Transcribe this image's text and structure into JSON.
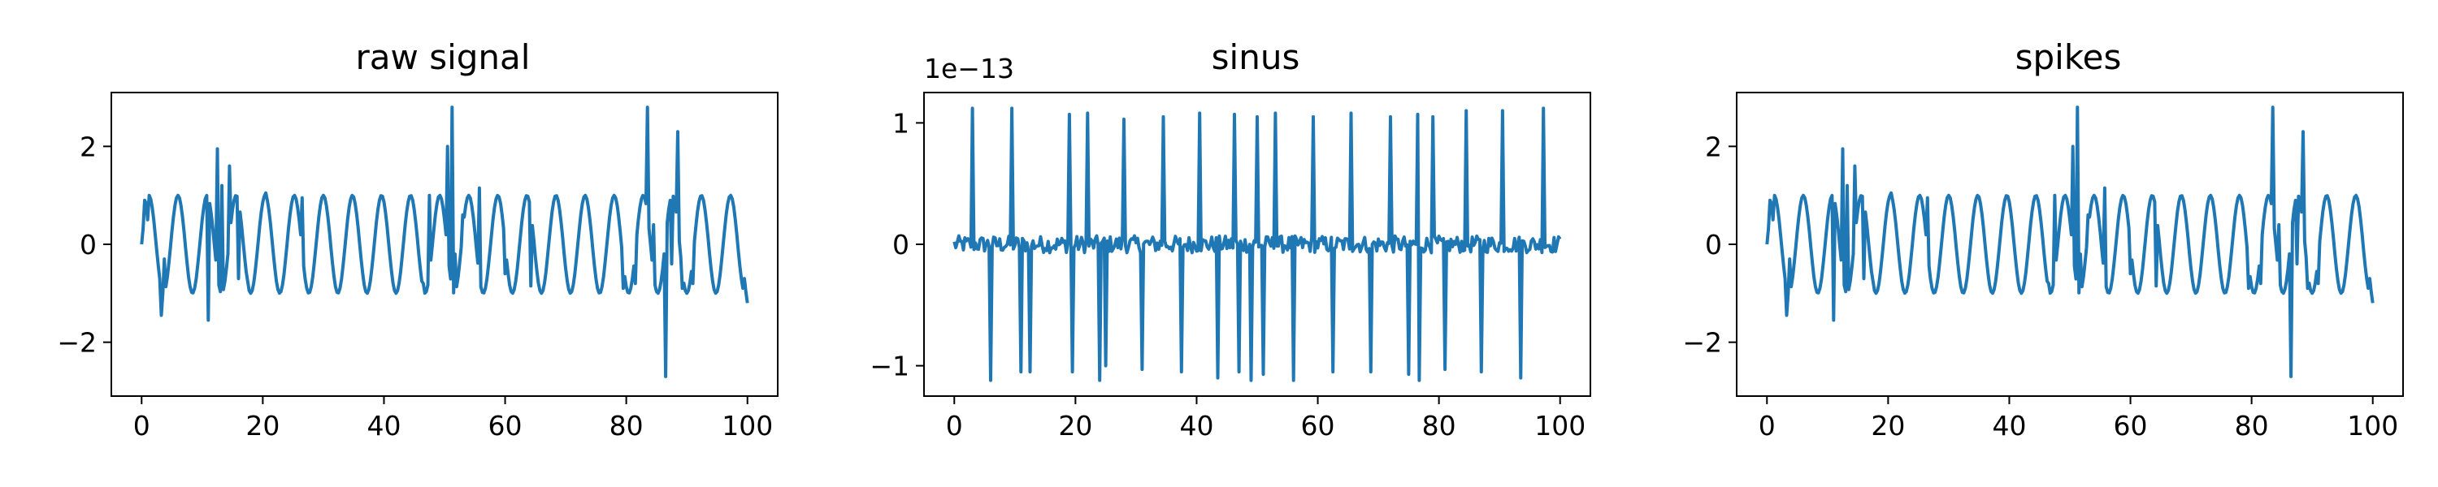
{
  "colors": {
    "line": "#1f77b4",
    "axes": "#000000",
    "background": "#ffffff"
  },
  "chart_data": [
    {
      "type": "line",
      "title": "raw signal",
      "xlabel": "",
      "ylabel": "",
      "xlim": [
        -5,
        105
      ],
      "ylim": [
        -3.1,
        3.1
      ],
      "xticks": [
        0,
        20,
        40,
        60,
        80,
        100
      ],
      "xtick_labels": [
        "0",
        "20",
        "40",
        "60",
        "80",
        "100"
      ],
      "yticks": [
        -2,
        0,
        2
      ],
      "ytick_labels": [
        "−2",
        "0",
        "2"
      ],
      "offset_label": "",
      "grid": false,
      "series": [
        {
          "period": 4.8,
          "amplitude": 1.0,
          "x_range": [
            0,
            100
          ],
          "spikes": [
            {
              "x": 0.4,
              "y": 0.9
            },
            {
              "x": 1.0,
              "y": 0.5
            },
            {
              "x": 3.2,
              "y": -1.45
            },
            {
              "x": 3.8,
              "y": -0.3
            },
            {
              "x": 11.0,
              "y": -1.55
            },
            {
              "x": 12.6,
              "y": 1.95
            },
            {
              "x": 13.2,
              "y": 1.2
            },
            {
              "x": 14.4,
              "y": 1.6
            },
            {
              "x": 16.0,
              "y": -0.7
            },
            {
              "x": 17.5,
              "y": -0.75
            },
            {
              "x": 20.6,
              "y": 1.05
            },
            {
              "x": 26.6,
              "y": 0.95
            },
            {
              "x": 46.4,
              "y": -0.8
            },
            {
              "x": 47.6,
              "y": 1.0
            },
            {
              "x": 50.6,
              "y": 2.0
            },
            {
              "x": 51.2,
              "y": 2.8
            },
            {
              "x": 51.8,
              "y": -0.2
            },
            {
              "x": 53.0,
              "y": 0.6
            },
            {
              "x": 55.8,
              "y": 1.15
            },
            {
              "x": 60.0,
              "y": -0.6
            },
            {
              "x": 64.2,
              "y": -0.85
            },
            {
              "x": 79.5,
              "y": -0.9
            },
            {
              "x": 81.6,
              "y": -0.8
            },
            {
              "x": 83.6,
              "y": 2.8
            },
            {
              "x": 84.4,
              "y": 0.4
            },
            {
              "x": 86.6,
              "y": -2.7
            },
            {
              "x": 87.4,
              "y": -0.4
            },
            {
              "x": 88.6,
              "y": 2.3
            },
            {
              "x": 89.2,
              "y": -0.9
            },
            {
              "x": 91.0,
              "y": -0.8
            },
            {
              "x": 99.6,
              "y": -0.7
            },
            {
              "x": 100.0,
              "y": -1.2
            }
          ]
        }
      ]
    },
    {
      "type": "line",
      "title": "sinus",
      "xlabel": "",
      "ylabel": "",
      "xlim": [
        -5,
        105
      ],
      "ylim": [
        -1.25,
        1.25
      ],
      "xticks": [
        0,
        20,
        40,
        60,
        80,
        100
      ],
      "xtick_labels": [
        "0",
        "20",
        "40",
        "60",
        "80",
        "100"
      ],
      "yticks": [
        -1,
        0,
        1
      ],
      "ytick_labels": [
        "−1",
        "0",
        "1"
      ],
      "offset_label": "1e−13",
      "grid": false,
      "series": [
        {
          "baseline_noise": 0.07,
          "x_range": [
            0,
            100
          ],
          "spikes": [
            {
              "x": 3.0,
              "y": 1.12
            },
            {
              "x": 6.0,
              "y": -1.12
            },
            {
              "x": 9.4,
              "y": 1.12
            },
            {
              "x": 11.0,
              "y": -1.05
            },
            {
              "x": 12.4,
              "y": -1.05
            },
            {
              "x": 19.0,
              "y": 1.07
            },
            {
              "x": 19.4,
              "y": -1.05
            },
            {
              "x": 22.0,
              "y": 1.08
            },
            {
              "x": 24.0,
              "y": -1.12
            },
            {
              "x": 25.0,
              "y": -1.0
            },
            {
              "x": 28.0,
              "y": 1.03
            },
            {
              "x": 31.0,
              "y": -1.03
            },
            {
              "x": 34.4,
              "y": 1.05
            },
            {
              "x": 37.4,
              "y": -1.05
            },
            {
              "x": 40.6,
              "y": 1.08
            },
            {
              "x": 43.6,
              "y": -1.1
            },
            {
              "x": 46.2,
              "y": 1.07
            },
            {
              "x": 47.0,
              "y": -1.05
            },
            {
              "x": 49.0,
              "y": -1.12
            },
            {
              "x": 50.0,
              "y": 1.05
            },
            {
              "x": 51.0,
              "y": -1.07
            },
            {
              "x": 53.0,
              "y": 1.08
            },
            {
              "x": 56.0,
              "y": -1.12
            },
            {
              "x": 59.2,
              "y": 1.05
            },
            {
              "x": 62.4,
              "y": -1.05
            },
            {
              "x": 65.6,
              "y": 1.08
            },
            {
              "x": 68.8,
              "y": -1.05
            },
            {
              "x": 72.0,
              "y": 1.05
            },
            {
              "x": 75.0,
              "y": -1.07
            },
            {
              "x": 76.4,
              "y": 1.07
            },
            {
              "x": 76.8,
              "y": -1.12
            },
            {
              "x": 79.0,
              "y": 1.05
            },
            {
              "x": 81.0,
              "y": -1.03
            },
            {
              "x": 84.6,
              "y": 1.1
            },
            {
              "x": 87.0,
              "y": -1.05
            },
            {
              "x": 90.6,
              "y": 1.1
            },
            {
              "x": 93.6,
              "y": -1.1
            },
            {
              "x": 97.2,
              "y": 1.12
            }
          ]
        }
      ]
    },
    {
      "type": "line",
      "title": "spikes",
      "xlabel": "",
      "ylabel": "",
      "xlim": [
        -5,
        105
      ],
      "ylim": [
        -3.1,
        3.1
      ],
      "xticks": [
        0,
        20,
        40,
        60,
        80,
        100
      ],
      "xtick_labels": [
        "0",
        "20",
        "40",
        "60",
        "80",
        "100"
      ],
      "yticks": [
        -2,
        0,
        2
      ],
      "ytick_labels": [
        "−2",
        "0",
        "2"
      ],
      "offset_label": "",
      "grid": false,
      "series": [
        {
          "period": 4.8,
          "amplitude": 1.0,
          "x_range": [
            0,
            100
          ],
          "spikes": [
            {
              "x": 0.4,
              "y": 0.9
            },
            {
              "x": 1.0,
              "y": 0.5
            },
            {
              "x": 3.2,
              "y": -1.45
            },
            {
              "x": 3.8,
              "y": -0.3
            },
            {
              "x": 11.0,
              "y": -1.55
            },
            {
              "x": 12.6,
              "y": 1.95
            },
            {
              "x": 13.2,
              "y": 1.2
            },
            {
              "x": 14.4,
              "y": 1.6
            },
            {
              "x": 16.0,
              "y": -0.7
            },
            {
              "x": 17.5,
              "y": -0.75
            },
            {
              "x": 20.6,
              "y": 1.05
            },
            {
              "x": 26.6,
              "y": 0.95
            },
            {
              "x": 46.4,
              "y": -0.8
            },
            {
              "x": 47.6,
              "y": 1.0
            },
            {
              "x": 50.6,
              "y": 2.0
            },
            {
              "x": 51.2,
              "y": 2.8
            },
            {
              "x": 51.8,
              "y": -0.2
            },
            {
              "x": 53.0,
              "y": 0.6
            },
            {
              "x": 55.8,
              "y": 1.15
            },
            {
              "x": 60.0,
              "y": -0.6
            },
            {
              "x": 64.2,
              "y": -0.85
            },
            {
              "x": 79.5,
              "y": -0.9
            },
            {
              "x": 81.6,
              "y": -0.8
            },
            {
              "x": 83.6,
              "y": 2.8
            },
            {
              "x": 84.4,
              "y": 0.4
            },
            {
              "x": 86.6,
              "y": -2.7
            },
            {
              "x": 87.4,
              "y": -0.4
            },
            {
              "x": 88.6,
              "y": 2.3
            },
            {
              "x": 89.2,
              "y": -0.9
            },
            {
              "x": 91.0,
              "y": -0.8
            },
            {
              "x": 99.6,
              "y": -0.7
            },
            {
              "x": 100.0,
              "y": -1.2
            }
          ]
        }
      ]
    }
  ]
}
